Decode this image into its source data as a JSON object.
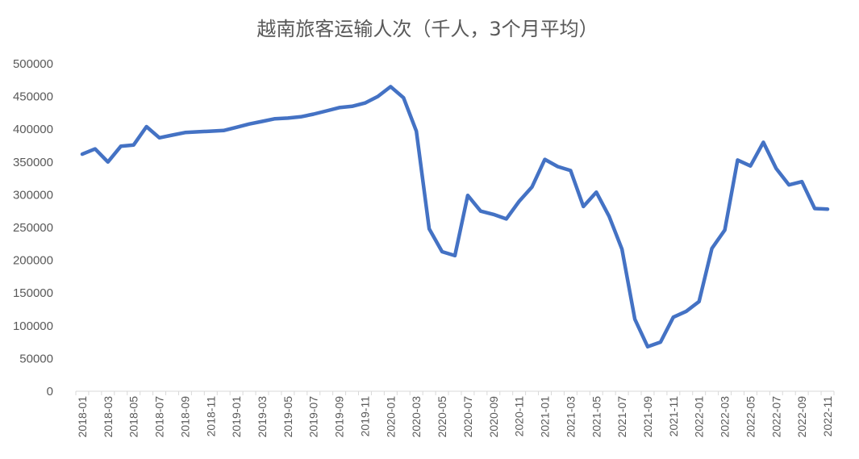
{
  "chart_data": {
    "type": "line",
    "title": "越南旅客运输人次（千人，3个月平均）",
    "xlabel": "",
    "ylabel": "",
    "ylim": [
      0,
      500000
    ],
    "yticks": [
      0,
      50000,
      100000,
      150000,
      200000,
      250000,
      300000,
      350000,
      400000,
      450000,
      500000
    ],
    "grid": false,
    "legend": "none",
    "line_color": "#4472C4",
    "x": [
      "2018-01",
      "2018-02",
      "2018-03",
      "2018-04",
      "2018-05",
      "2018-06",
      "2018-07",
      "2018-08",
      "2018-09",
      "2018-10",
      "2018-11",
      "2018-12",
      "2019-01",
      "2019-02",
      "2019-03",
      "2019-04",
      "2019-05",
      "2019-06",
      "2019-07",
      "2019-08",
      "2019-09",
      "2019-10",
      "2019-11",
      "2019-12",
      "2020-01",
      "2020-02",
      "2020-03",
      "2020-04",
      "2020-05",
      "2020-06",
      "2020-07",
      "2020-08",
      "2020-09",
      "2020-10",
      "2020-11",
      "2020-12",
      "2021-01",
      "2021-02",
      "2021-03",
      "2021-04",
      "2021-05",
      "2021-06",
      "2021-07",
      "2021-08",
      "2021-09",
      "2021-10",
      "2021-11",
      "2021-12",
      "2022-01",
      "2022-02",
      "2022-03",
      "2022-04",
      "2022-05",
      "2022-06",
      "2022-07",
      "2022-08",
      "2022-09",
      "2022-10",
      "2022-11"
    ],
    "x_tick_labels": [
      "2018-01",
      "2018-03",
      "2018-05",
      "2018-07",
      "2018-09",
      "2018-11",
      "2019-01",
      "2019-03",
      "2019-05",
      "2019-07",
      "2019-09",
      "2019-11",
      "2020-01",
      "2020-03",
      "2020-05",
      "2020-07",
      "2020-09",
      "2020-11",
      "2021-01",
      "2021-03",
      "2021-05",
      "2021-07",
      "2021-09",
      "2021-11",
      "2022-01",
      "2022-03",
      "2022-05",
      "2022-07",
      "2022-09",
      "2022-11"
    ],
    "series": [
      {
        "values": [
          362000,
          370000,
          350000,
          374000,
          376000,
          404000,
          387000,
          391000,
          395000,
          396000,
          397000,
          398000,
          403000,
          408000,
          412000,
          416000,
          417000,
          419000,
          423000,
          428000,
          433000,
          435000,
          440000,
          450000,
          465000,
          448000,
          397000,
          248000,
          213000,
          207000,
          299000,
          275000,
          270000,
          263000,
          290000,
          312000,
          354000,
          343000,
          337000,
          282000,
          304000,
          267000,
          217000,
          110000,
          68000,
          75000,
          113000,
          122000,
          137000,
          218000,
          246000,
          353000,
          344000,
          380000,
          340000,
          315000,
          320000,
          279000,
          278000
        ]
      }
    ]
  }
}
